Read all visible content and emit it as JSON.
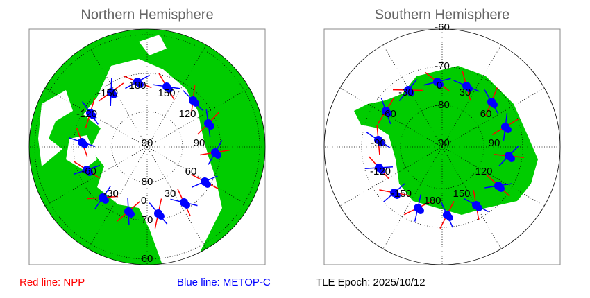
{
  "panels": [
    {
      "title": "Northern Hemisphere",
      "labels": [
        "-150",
        "180",
        "150",
        "-120",
        "120",
        "90",
        "90",
        "-60",
        "60",
        "-30",
        "30",
        "80",
        "0",
        "70",
        "60"
      ]
    },
    {
      "title": "Southern Hemisphere",
      "labels": [
        "-60",
        "-70",
        "-80",
        "-90",
        "0",
        "30",
        "-30",
        "60",
        "-60",
        "90",
        "-90",
        "120",
        "-120",
        "150",
        "-150",
        "180"
      ]
    }
  ],
  "legend": [
    "Red line: NPP",
    "Blue line: METOP-C",
    "TLE Epoch: 2025/10/12"
  ]
}
